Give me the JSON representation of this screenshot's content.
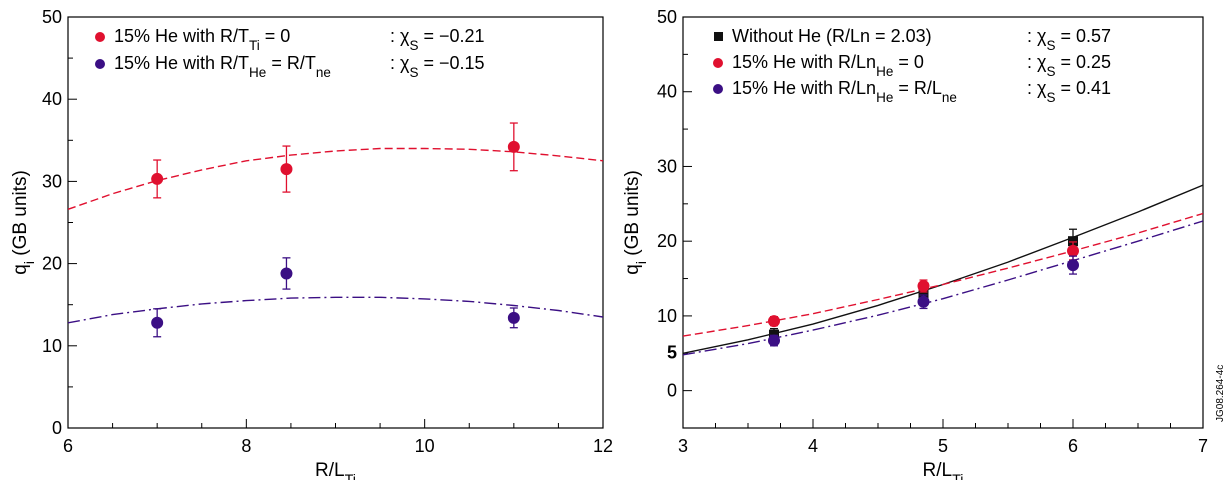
{
  "watermark": "JG08.264-4c",
  "colors": {
    "red": "#e0102f",
    "purple": "#3b0f84",
    "black": "#111111"
  },
  "chart_data": [
    {
      "type": "scatter",
      "xlabel": "R/L_Ti",
      "ylabel": "q_i (GB units)",
      "xlim": [
        6,
        12
      ],
      "ylim": [
        0,
        50
      ],
      "xticks": [
        6,
        8,
        10,
        12
      ],
      "yticks": [
        0,
        10,
        20,
        30,
        40,
        50
      ],
      "grid": false,
      "legend_position": "top-left",
      "series": [
        {
          "name": "15% He with R/T_Ti = 0",
          "chi": ": χ_S = −0.21",
          "color": "red",
          "marker": "circle",
          "x": [
            7.0,
            8.45,
            11.0
          ],
          "y": [
            30.3,
            31.5,
            34.2
          ],
          "err": [
            2.3,
            2.8,
            2.9
          ],
          "fit": {
            "style": "dashed",
            "x": [
              6,
              6.5,
              7,
              7.5,
              8,
              8.5,
              9,
              9.5,
              10,
              10.5,
              11,
              11.5,
              12
            ],
            "y": [
              26.6,
              28.5,
              30.1,
              31.4,
              32.5,
              33.2,
              33.7,
              34.0,
              34.0,
              33.9,
              33.6,
              33.1,
              32.5
            ]
          }
        },
        {
          "name": "15% He with R/T_He = R/T_ne",
          "chi": ": χ_S = −0.15",
          "color": "purple",
          "marker": "circle",
          "x": [
            7.0,
            8.45,
            11.0
          ],
          "y": [
            12.8,
            18.8,
            13.4
          ],
          "err": [
            1.7,
            1.9,
            1.2
          ],
          "fit": {
            "style": "dashdot",
            "x": [
              6,
              6.5,
              7,
              7.5,
              8,
              8.5,
              9,
              9.5,
              10,
              10.5,
              11,
              11.5,
              12
            ],
            "y": [
              12.8,
              13.8,
              14.5,
              15.1,
              15.5,
              15.8,
              15.9,
              15.9,
              15.7,
              15.4,
              14.9,
              14.3,
              13.5
            ]
          }
        }
      ]
    },
    {
      "type": "scatter",
      "xlabel": "R/L_Ti",
      "ylabel": "q_i (GB units)",
      "xlim": [
        3,
        7
      ],
      "ylim": [
        -5,
        50
      ],
      "xticks": [
        3,
        4,
        5,
        6,
        7
      ],
      "yticks": [
        0,
        5,
        10,
        20,
        30,
        40,
        50
      ],
      "grid": false,
      "legend_position": "top-left",
      "series": [
        {
          "name": "Without He (R/Ln = 2.03)",
          "chi": ": χ_S = 0.57",
          "color": "black",
          "marker": "square",
          "x": [
            3.7,
            4.85,
            6.0
          ],
          "y": [
            7.5,
            13.0,
            20.0
          ],
          "err": [
            0.8,
            1.0,
            1.6
          ],
          "fit": {
            "style": "solid",
            "x": [
              3.0,
              3.5,
              4.0,
              4.5,
              5.0,
              5.5,
              6.0,
              6.5,
              7.0
            ],
            "y": [
              5.0,
              6.8,
              8.9,
              11.4,
              14.2,
              17.2,
              20.5,
              23.9,
              27.5
            ]
          }
        },
        {
          "name": "15% He with R/Ln_He = 0",
          "chi": ": χ_S = 0.25",
          "color": "red",
          "marker": "circle",
          "x": [
            3.7,
            4.85,
            6.0
          ],
          "y": [
            9.3,
            14.0,
            18.7
          ],
          "err": [
            0.6,
            0.8,
            1.2
          ],
          "fit": {
            "style": "dashed",
            "x": [
              3.0,
              3.5,
              4.0,
              4.5,
              5.0,
              5.5,
              6.0,
              6.5,
              7.0
            ],
            "y": [
              7.3,
              8.7,
              10.3,
              12.2,
              14.2,
              16.4,
              18.7,
              21.1,
              23.7
            ]
          }
        },
        {
          "name": "15% He with R/Ln_He = R/L_ne",
          "chi": ": χ_S = 0.41",
          "color": "purple",
          "marker": "circle",
          "x": [
            3.7,
            4.85,
            6.0
          ],
          "y": [
            6.7,
            11.9,
            16.8
          ],
          "err": [
            0.7,
            0.9,
            1.2
          ],
          "fit": {
            "style": "dashdot",
            "x": [
              3.0,
              3.5,
              4.0,
              4.5,
              5.0,
              5.5,
              6.0,
              6.5,
              7.0
            ],
            "y": [
              4.8,
              6.3,
              8.1,
              10.1,
              12.3,
              14.8,
              17.4,
              20.0,
              22.7
            ]
          }
        }
      ]
    }
  ]
}
